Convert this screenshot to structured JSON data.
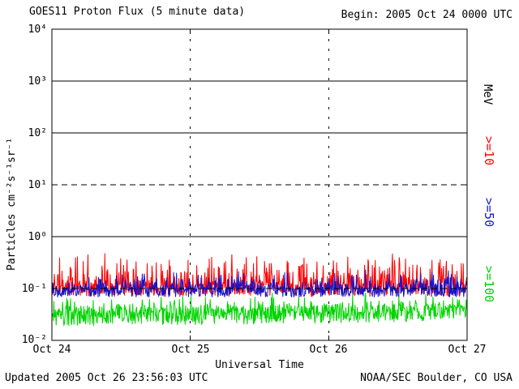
{
  "header": {
    "title": "GOES11 Proton Flux (5 minute data)",
    "begin_label": "Begin: 2005 Oct 24 0000 UTC"
  },
  "footer": {
    "updated": "Updated 2005 Oct 26 23:56:03 UTC",
    "credit": "NOAA/SEC Boulder, CO USA"
  },
  "chart_data": {
    "type": "line",
    "title": "GOES11 Proton Flux (5 minute data)",
    "xlabel": "Universal Time",
    "ylabel": "Particles cm⁻²s⁻¹sr⁻¹",
    "begin": "2005 Oct 24 0000 UTC",
    "x_tick_labels": [
      "Oct 24",
      "Oct 25",
      "Oct 26",
      "Oct 27"
    ],
    "y_tick_labels": [
      "10⁴",
      "10³",
      "10²",
      "10¹",
      "10⁰",
      "10⁻¹",
      "10⁻²"
    ],
    "ylim_log10": [
      -2,
      4
    ],
    "x_range_days": 3,
    "right_axis_label": "MeV",
    "legend": [
      {
        "label": ">=10",
        "color": "#ff0000"
      },
      {
        "label": ">=50",
        "color": "#1414cc"
      },
      {
        "label": ">=100",
        "color": "#00cc00"
      }
    ],
    "grid": {
      "hlines": [
        {
          "log10": 3,
          "style": "solid"
        },
        {
          "log10": 2,
          "style": "solid"
        },
        {
          "log10": 1,
          "style": "dashed"
        },
        {
          "log10": 0,
          "style": "solid"
        },
        {
          "log10": -1,
          "style": "dashed"
        }
      ],
      "vlines_days": [
        1,
        2
      ]
    },
    "points_per_series": 864,
    "series": [
      {
        "name": ">=10 MeV",
        "color": "#ff0000",
        "seed": 11,
        "base_log10": -1.03,
        "jitter_log10": 0.13,
        "spike_log10": 0.62,
        "spike_pow": 4,
        "drift_log10": 0.0,
        "approx_mean_flux": 0.12,
        "approx_range_flux": [
          0.06,
          0.5
        ]
      },
      {
        "name": ">=50 MeV",
        "color": "#1414cc",
        "seed": 22,
        "base_log10": -1.06,
        "jitter_log10": 0.11,
        "spike_log10": 0.34,
        "spike_pow": 5,
        "drift_log10": 0.0,
        "approx_mean_flux": 0.09,
        "approx_range_flux": [
          0.05,
          0.2
        ]
      },
      {
        "name": ">=100 MeV",
        "color": "#00d400",
        "seed": 33,
        "base_log10": -1.56,
        "jitter_log10": 0.18,
        "spike_log10": 0.26,
        "spike_pow": 5,
        "drift_log10": 0.1,
        "approx_mean_flux": 0.032,
        "approx_range_flux": [
          0.015,
          0.09
        ]
      }
    ]
  }
}
